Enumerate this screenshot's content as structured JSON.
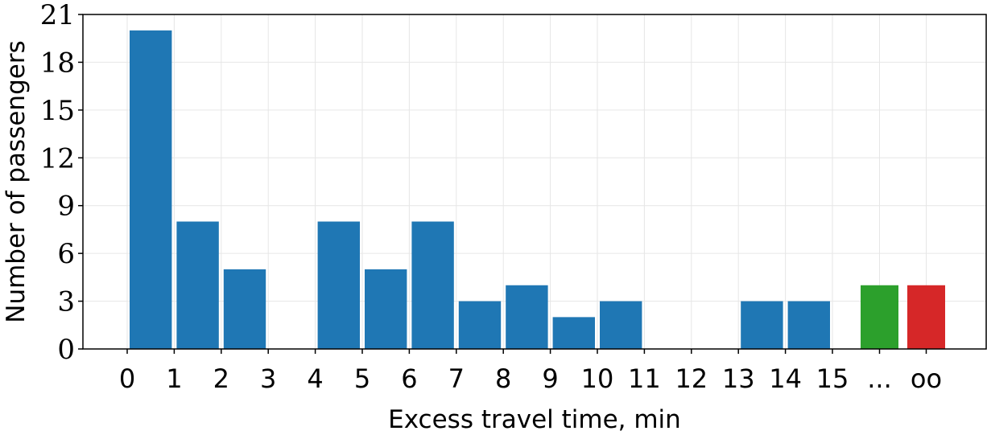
{
  "chart_data": {
    "type": "bar",
    "xlabel": "Excess travel time, min",
    "ylabel": "Number of passengers",
    "ylim": [
      0,
      21
    ],
    "yticks": [
      0,
      3,
      6,
      9,
      12,
      15,
      18,
      21
    ],
    "grid": true,
    "xtick_labels": [
      "0",
      "1",
      "2",
      "3",
      "4",
      "5",
      "6",
      "7",
      "8",
      "9",
      "10",
      "11",
      "12",
      "13",
      "14",
      "15",
      "...",
      "oo"
    ],
    "histogram": {
      "bins": [
        [
          0,
          1
        ],
        [
          1,
          2
        ],
        [
          2,
          3
        ],
        [
          3,
          4
        ],
        [
          4,
          5
        ],
        [
          5,
          6
        ],
        [
          6,
          7
        ],
        [
          7,
          8
        ],
        [
          8,
          9
        ],
        [
          9,
          10
        ],
        [
          10,
          11
        ],
        [
          11,
          12
        ],
        [
          12,
          13
        ],
        [
          13,
          14
        ],
        [
          14,
          15
        ]
      ],
      "values": [
        20,
        8,
        5,
        0,
        8,
        5,
        8,
        3,
        4,
        2,
        3,
        0,
        0,
        3,
        3
      ],
      "color": "#1f77b4"
    },
    "extra_bars": [
      {
        "category": "...",
        "value": 4,
        "color": "#2ca02c"
      },
      {
        "category": "oo",
        "value": 4,
        "color": "#d62728"
      }
    ]
  }
}
